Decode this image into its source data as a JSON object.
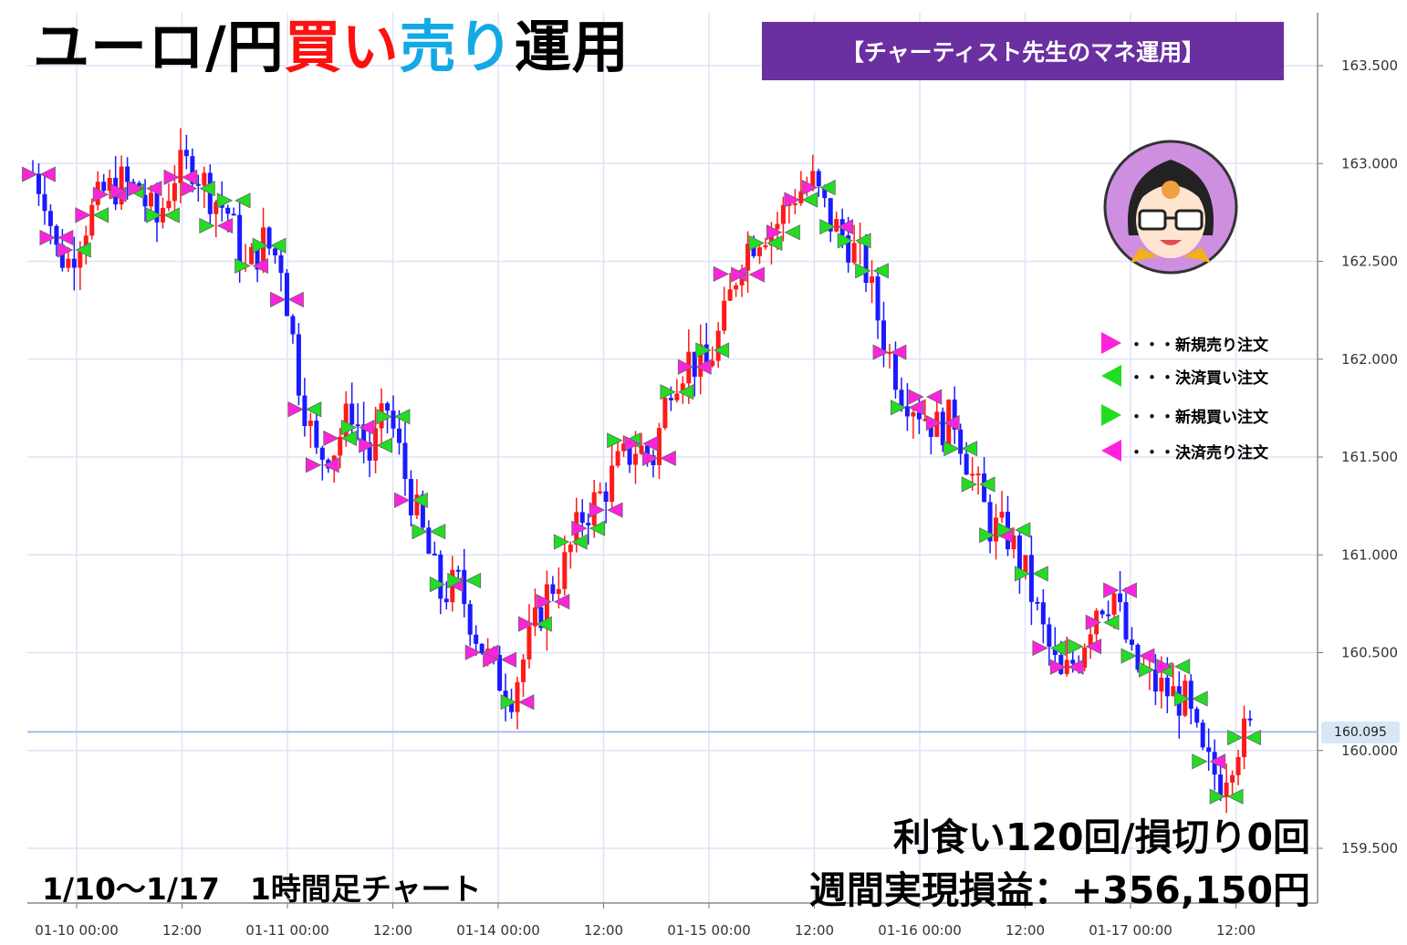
{
  "title": {
    "part1": "ユーロ/円",
    "part2": "買い",
    "part3": "売り",
    "part4": "運用"
  },
  "banner": "【チャーティスト先生のマネ運用】",
  "legend": [
    {
      "icon": "magenta-right-triangle-icon",
      "color": "#ff22dd",
      "dir": "right",
      "label": "・・・新規売り注文"
    },
    {
      "icon": "green-left-triangle-icon",
      "color": "#22dd22",
      "dir": "left",
      "label": "・・・決済買い注文"
    },
    {
      "icon": "green-right-triangle-icon",
      "color": "#22dd22",
      "dir": "right",
      "label": "・・・新規買い注文"
    },
    {
      "icon": "magenta-left-triangle-icon",
      "color": "#ff22dd",
      "dir": "left",
      "label": "・・・決済売り注文"
    }
  ],
  "period_label": "1/10〜1/17　1時間足チャート",
  "result_line1": "利食い120回/損切り0回",
  "result_line2": "週間実現損益：+356,150円",
  "current_price_label": "160.095",
  "colors": {
    "up": "#ff1a1a",
    "down": "#1a1aff",
    "grid": "#dde3f7",
    "sell": "#ff22dd",
    "buy": "#22dd22"
  },
  "chart_data": {
    "type": "candlestick",
    "timeframe": "1h",
    "ylim": [
      159.3,
      163.7
    ],
    "y_ticks": [
      "163.500",
      "163.000",
      "162.500",
      "162.000",
      "161.500",
      "161.000",
      "160.500",
      "160.000",
      "159.500"
    ],
    "x_ticks": [
      "01-10 00:00",
      "12:00",
      "01-11 00:00",
      "12:00",
      "01-14 00:00",
      "12:00",
      "01-15 00:00",
      "12:00",
      "01-16 00:00",
      "12:00",
      "01-17 00:00",
      "12:00"
    ],
    "current_price": 160.095,
    "close_path": [
      [
        0,
        162.95
      ],
      [
        2,
        162.85
      ],
      [
        4,
        162.55
      ],
      [
        6,
        162.5
      ],
      [
        9,
        162.7
      ],
      [
        12,
        162.85
      ],
      [
        15,
        162.9
      ],
      [
        18,
        162.85
      ],
      [
        21,
        162.7
      ],
      [
        24,
        162.95
      ],
      [
        27,
        163.0
      ],
      [
        30,
        162.85
      ],
      [
        33,
        162.75
      ],
      [
        36,
        162.45
      ],
      [
        39,
        162.6
      ],
      [
        42,
        162.5
      ],
      [
        45,
        161.9
      ],
      [
        48,
        161.5
      ],
      [
        51,
        161.55
      ],
      [
        54,
        161.75
      ],
      [
        57,
        161.5
      ],
      [
        60,
        161.75
      ],
      [
        63,
        161.4
      ],
      [
        66,
        161.1
      ],
      [
        69,
        160.8
      ],
      [
        72,
        160.85
      ],
      [
        75,
        160.6
      ],
      [
        78,
        160.4
      ],
      [
        81,
        160.3
      ],
      [
        84,
        160.55
      ],
      [
        87,
        160.8
      ],
      [
        90,
        160.95
      ],
      [
        93,
        161.2
      ],
      [
        96,
        161.3
      ],
      [
        99,
        161.45
      ],
      [
        102,
        161.55
      ],
      [
        105,
        161.5
      ],
      [
        108,
        161.9
      ],
      [
        111,
        162.0
      ],
      [
        114,
        161.95
      ],
      [
        117,
        162.2
      ],
      [
        120,
        162.55
      ],
      [
        123,
        162.65
      ],
      [
        126,
        162.7
      ],
      [
        129,
        162.85
      ],
      [
        132,
        162.9
      ],
      [
        135,
        162.7
      ],
      [
        138,
        162.6
      ],
      [
        141,
        162.45
      ],
      [
        144,
        162.1
      ],
      [
        147,
        161.85
      ],
      [
        150,
        161.75
      ],
      [
        153,
        161.65
      ],
      [
        156,
        161.7
      ],
      [
        159,
        161.4
      ],
      [
        162,
        161.15
      ],
      [
        165,
        161.1
      ],
      [
        168,
        160.9
      ],
      [
        171,
        160.6
      ],
      [
        174,
        160.35
      ],
      [
        177,
        160.5
      ],
      [
        180,
        160.75
      ],
      [
        183,
        160.8
      ],
      [
        186,
        160.45
      ],
      [
        189,
        160.35
      ],
      [
        192,
        160.3
      ],
      [
        195,
        160.25
      ],
      [
        198,
        159.95
      ],
      [
        201,
        159.85
      ],
      [
        204,
        160.05
      ],
      [
        206,
        160.1
      ]
    ]
  }
}
